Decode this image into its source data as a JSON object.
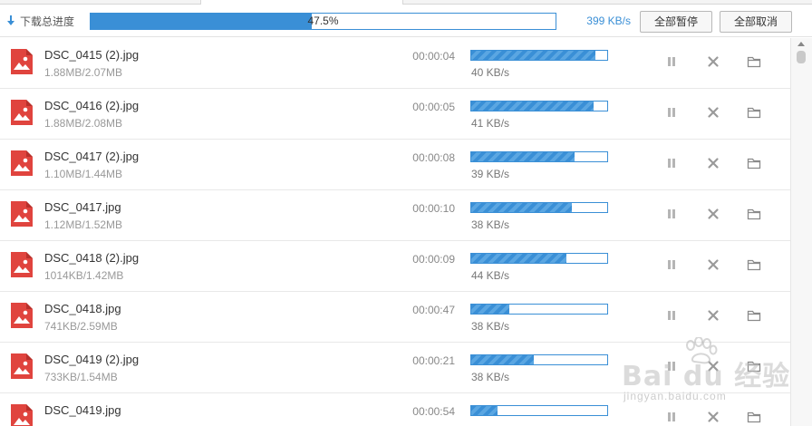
{
  "header": {
    "total_label": "下载总进度",
    "total_progress_text": "47.5%",
    "total_progress_fraction": 0.475,
    "total_speed": "399 KB/s",
    "pause_all_label": "全部暂停",
    "cancel_all_label": "全部取消"
  },
  "icons": {
    "file": "image-file-icon",
    "pause": "pause-icon",
    "cancel": "close-icon",
    "folder": "folder-icon",
    "download": "download-arrow-icon"
  },
  "colors": {
    "accent": "#3a8fd6",
    "file_icon": "#e0443e"
  },
  "downloads": [
    {
      "name": "DSC_0415 (2).jpg",
      "size": "1.88MB/2.07MB",
      "time": "00:00:04",
      "progress": 0.91,
      "speed": "40 KB/s"
    },
    {
      "name": "DSC_0416 (2).jpg",
      "size": "1.88MB/2.08MB",
      "time": "00:00:05",
      "progress": 0.9,
      "speed": "41 KB/s"
    },
    {
      "name": "DSC_0417 (2).jpg",
      "size": "1.10MB/1.44MB",
      "time": "00:00:08",
      "progress": 0.76,
      "speed": "39 KB/s"
    },
    {
      "name": "DSC_0417.jpg",
      "size": "1.12MB/1.52MB",
      "time": "00:00:10",
      "progress": 0.74,
      "speed": "38 KB/s"
    },
    {
      "name": "DSC_0418 (2).jpg",
      "size": "1014KB/1.42MB",
      "time": "00:00:09",
      "progress": 0.7,
      "speed": "44 KB/s"
    },
    {
      "name": "DSC_0418.jpg",
      "size": "741KB/2.59MB",
      "time": "00:00:47",
      "progress": 0.28,
      "speed": "38 KB/s"
    },
    {
      "name": "DSC_0419 (2).jpg",
      "size": "733KB/1.54MB",
      "time": "00:00:21",
      "progress": 0.46,
      "speed": "38 KB/s"
    },
    {
      "name": "DSC_0419.jpg",
      "size": "",
      "time": "00:00:54",
      "progress": 0.19,
      "speed": ""
    }
  ],
  "watermark": {
    "main": "Bai du 经验",
    "sub": "jingyan.baidu.com"
  }
}
